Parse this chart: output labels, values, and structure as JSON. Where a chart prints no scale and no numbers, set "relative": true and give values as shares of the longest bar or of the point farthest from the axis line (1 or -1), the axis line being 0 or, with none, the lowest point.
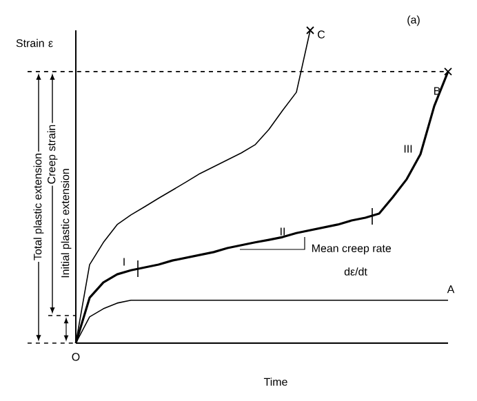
{
  "chart_data": {
    "type": "line",
    "relative": true,
    "xlabel": "Time",
    "ylabel": "Strain ε",
    "line_style": "solid",
    "marker": "none",
    "categories": [
      null,
      null,
      null,
      null,
      null,
      null,
      null,
      null,
      null,
      null,
      null,
      null,
      null,
      null,
      null,
      null,
      null,
      null,
      null,
      null,
      null,
      null,
      null,
      null,
      null,
      null,
      null,
      null
    ],
    "series": [
      {
        "name": "A",
        "color": "#000000",
        "values": [
          0,
          0.084,
          0.11,
          0.128,
          0.137,
          0.137,
          0.137,
          0.137,
          0.137,
          0.137,
          0.137,
          0.137,
          0.137,
          0.137,
          0.137,
          0.137,
          0.137,
          0.137,
          0.137,
          0.137,
          0.137,
          0.137,
          0.137,
          0.137,
          0.137,
          0.137,
          0.137,
          0.137
        ]
      },
      {
        "name": "B",
        "color": "#000000",
        "values": [
          0,
          0.145,
          0.194,
          0.22,
          0.233,
          0.242,
          0.251,
          0.264,
          0.273,
          0.282,
          0.291,
          0.304,
          0.313,
          0.322,
          0.33,
          0.339,
          0.352,
          0.361,
          0.37,
          0.379,
          0.392,
          0.401,
          0.414,
          0.467,
          0.524,
          0.604,
          0.758,
          0.868
        ]
      },
      {
        "name": "C",
        "color": "#000000",
        "values": [
          0,
          0.251,
          0.322,
          0.379,
          0.41,
          0.436,
          0.463,
          0.489,
          0.515,
          0.542,
          0.564,
          0.586,
          0.608,
          0.634,
          0.683,
          0.744,
          0.802,
          1.0,
          null,
          null,
          null,
          null,
          null,
          null,
          null,
          null,
          null,
          null
        ]
      }
    ],
    "ref_lines": [
      {
        "axis": "y",
        "value": 0.868,
        "line_style": "dashed"
      }
    ],
    "annotations": [
      "(a)",
      "I",
      "II",
      "III",
      "Mean creep rate",
      "dε/dt",
      "O",
      "Total plastic extension",
      "Creep strain",
      "Initial plastic extension"
    ]
  }
}
